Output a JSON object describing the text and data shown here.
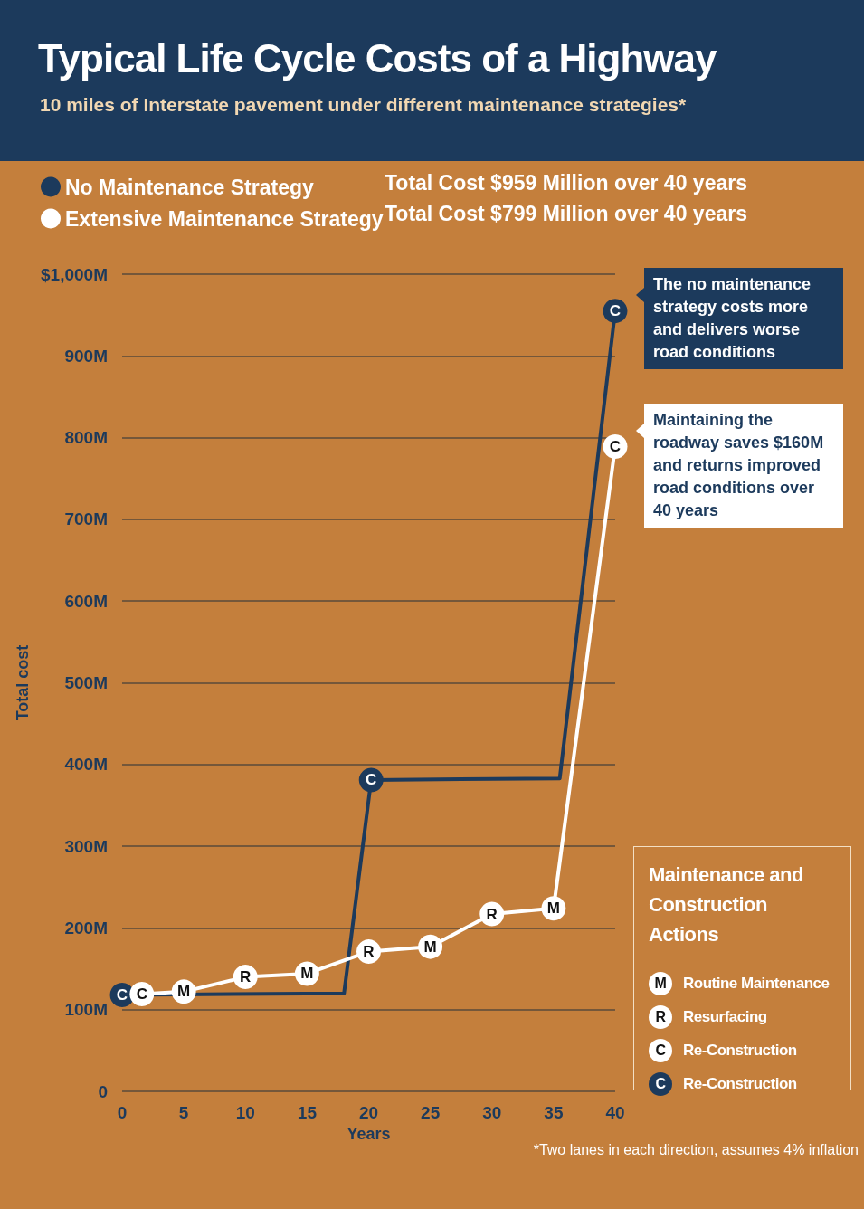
{
  "chart_data": {
    "type": "line",
    "title": "Typical Life Cycle Costs of a Highway",
    "subtitle": "10 miles of Interstate pavement under different maintenance strategies*",
    "xlabel": "Years",
    "ylabel": "Total cost",
    "xlim": [
      0,
      40
    ],
    "xticks": [
      0,
      5,
      10,
      15,
      20,
      25,
      30,
      35,
      40
    ],
    "ylim": [
      0,
      1000
    ],
    "yticks": [
      {
        "value": 0,
        "label": "0"
      },
      {
        "value": 100,
        "label": "100M"
      },
      {
        "value": 200,
        "label": "200M"
      },
      {
        "value": 300,
        "label": "300M"
      },
      {
        "value": 400,
        "label": "400M"
      },
      {
        "value": 500,
        "label": "500M"
      },
      {
        "value": 600,
        "label": "600M"
      },
      {
        "value": 700,
        "label": "700M"
      },
      {
        "value": 800,
        "label": "800M"
      },
      {
        "value": 900,
        "label": "900M"
      },
      {
        "value": 1000,
        "label": "$1,000M"
      }
    ],
    "grid": "y",
    "legend": "top left",
    "marker": "circle",
    "line_style": "solid",
    "series": [
      {
        "name": "No Maintenance Strategy",
        "color": "#1c3a5c",
        "x": [
          0,
          18,
          20.2,
          35.5,
          40
        ],
        "values": [
          118,
          120,
          381,
          383,
          955
        ],
        "value_labels": [
          "C",
          null,
          "C",
          null,
          "C"
        ]
      },
      {
        "name": "Extensive Maintenance Strategy",
        "color": "#ffffff",
        "x": [
          1.6,
          5,
          10,
          15,
          20,
          25,
          30,
          35,
          40
        ],
        "values": [
          119,
          122,
          140,
          144,
          171,
          177,
          217,
          224,
          789
        ],
        "value_labels": [
          "C",
          "M",
          "R",
          "M",
          "R",
          "M",
          "R",
          "M",
          "C"
        ]
      }
    ],
    "annotations": [
      "Total Cost $959 Million over 40 years",
      "Total Cost $799 Million over 40 years",
      {
        "text": "The no maintenance strategy costs more and delivers worse road conditions",
        "x": 40,
        "y": 955
      },
      {
        "text": "Maintaining the roadway saves $160M and returns improved road conditions over 40 years",
        "x": 40,
        "y": 789
      },
      "Maintenance and Construction Actions",
      "M Routine Maintenance",
      "R Resurfacing",
      "C Re-Construction",
      "C Re-Construction",
      "*Two lanes in each direction, assumes 4% inflation"
    ]
  }
}
